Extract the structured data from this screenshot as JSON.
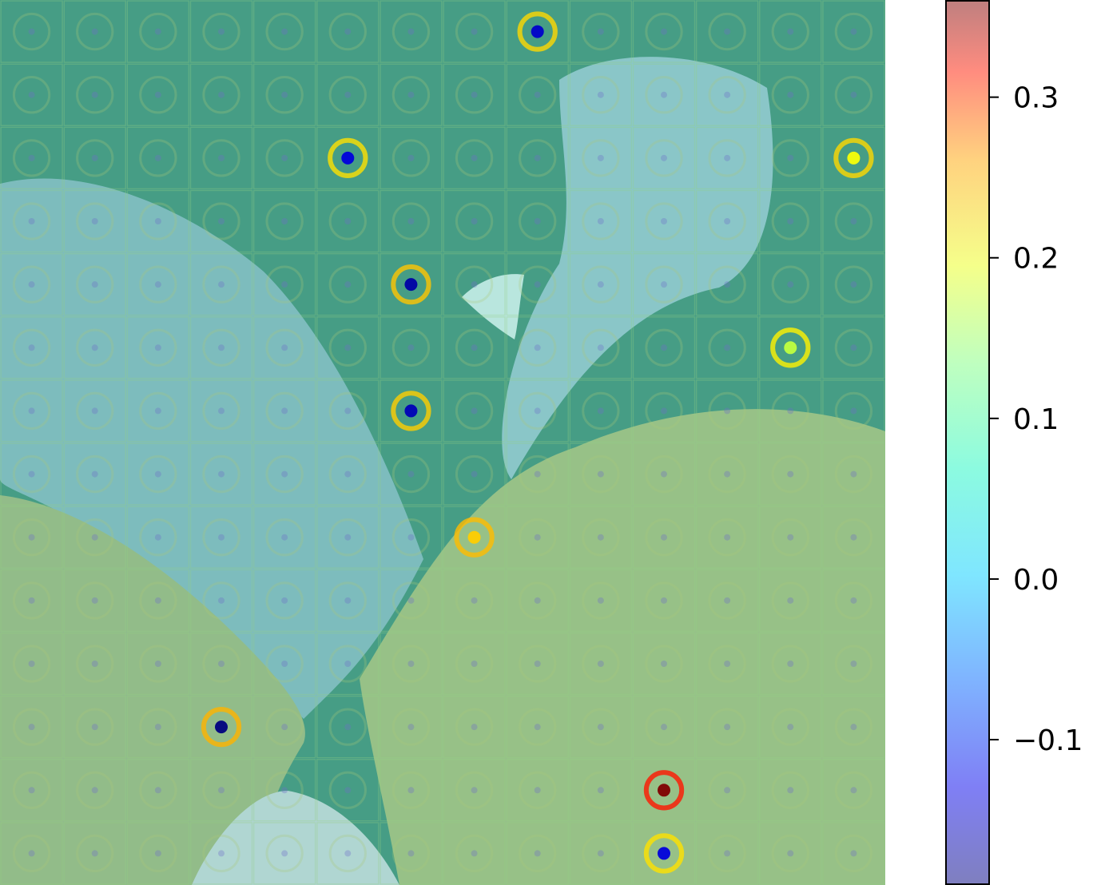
{
  "chart_data": {
    "type": "heatmap",
    "title": "",
    "xlabel": "",
    "ylabel": "",
    "colormap": "jet",
    "colormap_alpha": 0.5,
    "grid": {
      "rows": 14,
      "cols": 14
    },
    "value_range": [
      -0.19,
      0.36
    ],
    "colorbar": {
      "ticks": [
        {
          "value": 0.3,
          "label": "0.3"
        },
        {
          "value": 0.2,
          "label": "0.2"
        },
        {
          "value": 0.1,
          "label": "0.1"
        },
        {
          "value": 0.0,
          "label": "0.0"
        },
        {
          "value": -0.1,
          "label": "−0.1"
        }
      ]
    },
    "strong_cells": [
      {
        "row": 12,
        "col": 10,
        "value": 0.36
      },
      {
        "row": 8,
        "col": 7,
        "value": 0.18
      },
      {
        "row": 6,
        "col": 6,
        "value": -0.16
      },
      {
        "row": 11,
        "col": 3,
        "value": -0.19
      },
      {
        "row": 4,
        "col": 6,
        "value": -0.17
      },
      {
        "row": 0,
        "col": 8,
        "value": -0.15
      },
      {
        "row": 2,
        "col": 5,
        "value": -0.14
      },
      {
        "row": 13,
        "col": 10,
        "value": -0.14
      },
      {
        "row": 2,
        "col": 13,
        "value": 0.15
      },
      {
        "row": 5,
        "col": 12,
        "value": 0.12
      }
    ]
  },
  "background": {
    "water_color": "#3f9da0",
    "fish_blue": "#86c9de",
    "fish_yellow": "#a9c986",
    "coral_color": "#c7e2ea"
  }
}
